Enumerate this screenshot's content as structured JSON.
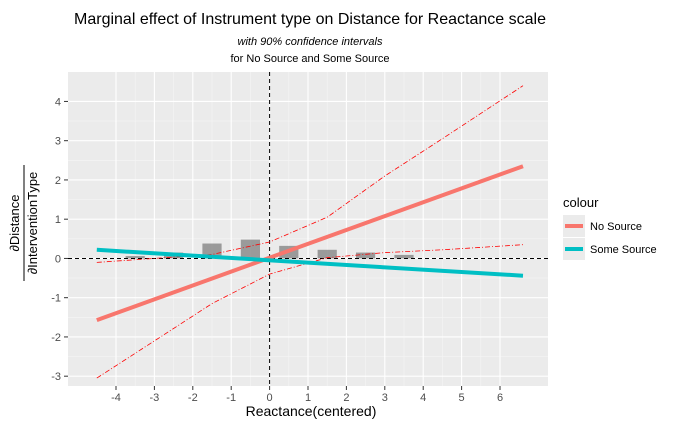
{
  "chart_data": {
    "type": "line",
    "title": "Marginal effect of Instrument type on Distance for Reactance scale",
    "subtitle_line1": "with 90% confidence intervals",
    "subtitle_line2": "for No Source and Some Source",
    "xlabel": "Reactance(centered)",
    "ylabel_numerator": "∂Distance",
    "ylabel_denominator": "∂InterventionType",
    "xlim": [
      -5.25,
      7.25
    ],
    "ylim": [
      -3.25,
      4.75
    ],
    "x_ticks": [
      -4,
      -3,
      -2,
      -1,
      0,
      1,
      2,
      3,
      4,
      5,
      6
    ],
    "x_tick_labels": [
      "-4",
      "-3",
      "-2",
      "-1",
      "0",
      "1",
      "2",
      "3",
      "4",
      "5",
      "6"
    ],
    "y_ticks": [
      -3,
      -2,
      -1,
      0,
      1,
      2,
      3,
      4
    ],
    "y_tick_labels": [
      "-3",
      "-2",
      "-1",
      "0",
      "1",
      "2",
      "3",
      "4"
    ],
    "grid": true,
    "legend": {
      "title": "colour",
      "position": "right"
    },
    "series": [
      {
        "name": "No Source",
        "color": "#F8766D",
        "x": [
          -4.5,
          6.6
        ],
        "y": [
          -1.57,
          2.35
        ]
      },
      {
        "name": "Some Source",
        "color": "#00BFC4",
        "x": [
          -4.5,
          6.6
        ],
        "y": [
          0.22,
          -0.44
        ]
      }
    ],
    "confidence_band": {
      "color": "#ff0000",
      "x": [
        -4.5,
        -3,
        -1.5,
        0,
        1.5,
        3,
        4.5,
        6.6
      ],
      "upper": [
        -0.1,
        0.0,
        0.1,
        0.42,
        1.05,
        2.1,
        3.05,
        4.4
      ],
      "lower": [
        -3.05,
        -2.1,
        -1.15,
        -0.4,
        0.02,
        0.15,
        0.22,
        0.35
      ]
    },
    "histogram": {
      "color": "#7f7f7f",
      "bin_width": 0.5,
      "centers": [
        -3.5,
        -2.5,
        -1.5,
        -0.5,
        0.5,
        1.5,
        2.5,
        3.5
      ],
      "heights": [
        0.06,
        0.15,
        0.38,
        0.48,
        0.32,
        0.22,
        0.15,
        0.09
      ]
    },
    "reference_lines": {
      "zero_x": 0,
      "zero_y": 0
    }
  }
}
